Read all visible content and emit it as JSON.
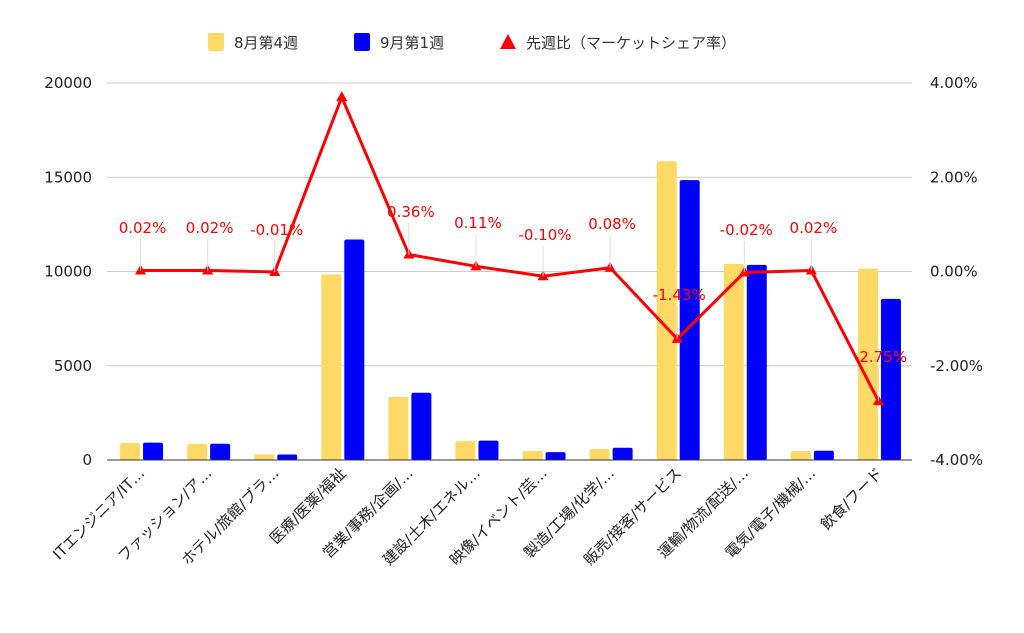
{
  "chart_data": {
    "type": "bar",
    "categories": [
      "ITエンジニア/IT…",
      "ファッション/ア…",
      "ホテル/旅館/ブラ…",
      "医療/医薬/福祉",
      "営業/事務/企画/…",
      "建設/土木/エネル…",
      "映像/イベント/芸…",
      "製造/工場/化学/…",
      "販売/接客/サービス",
      "運輸/物流/配送/…",
      "電気/電子/機械/…",
      "飲食/フード"
    ],
    "series": [
      {
        "name": "8月第4週",
        "type": "bar",
        "axis": "left",
        "color": "#ffd966",
        "values": [
          900,
          850,
          300,
          9850,
          3350,
          1000,
          480,
          580,
          15850,
          10400,
          480,
          10150
        ]
      },
      {
        "name": "9月第1週",
        "type": "bar",
        "axis": "left",
        "color": "#0000ff",
        "values": [
          920,
          860,
          290,
          11700,
          3570,
          1030,
          420,
          650,
          14850,
          10350,
          490,
          8550
        ]
      },
      {
        "name": "先週比（マーケットシェア率）",
        "type": "line",
        "axis": "right",
        "color": "#ff0000",
        "marker": "triangle",
        "values": [
          0.02,
          0.02,
          -0.01,
          3.7,
          0.36,
          0.11,
          -0.1,
          0.08,
          -1.43,
          -0.02,
          0.02,
          -2.75
        ],
        "data_labels": [
          "0.02%",
          "0.02%",
          "-0.01%",
          "",
          "0.36%",
          "0.11%",
          "-0.10%",
          "0.08%",
          "-1.43%",
          "-0.02%",
          "0.02%",
          "-2.75%"
        ]
      }
    ],
    "y_left": {
      "min": 0,
      "max": 20000,
      "ticks": [
        "0",
        "5000",
        "10000",
        "15000",
        "20000"
      ]
    },
    "y_right": {
      "min": -4,
      "max": 4,
      "ticks": [
        "-4.00%",
        "-2.00%",
        "0.00%",
        "2.00%",
        "4.00%"
      ]
    },
    "grid": true,
    "legend_position": "top"
  }
}
